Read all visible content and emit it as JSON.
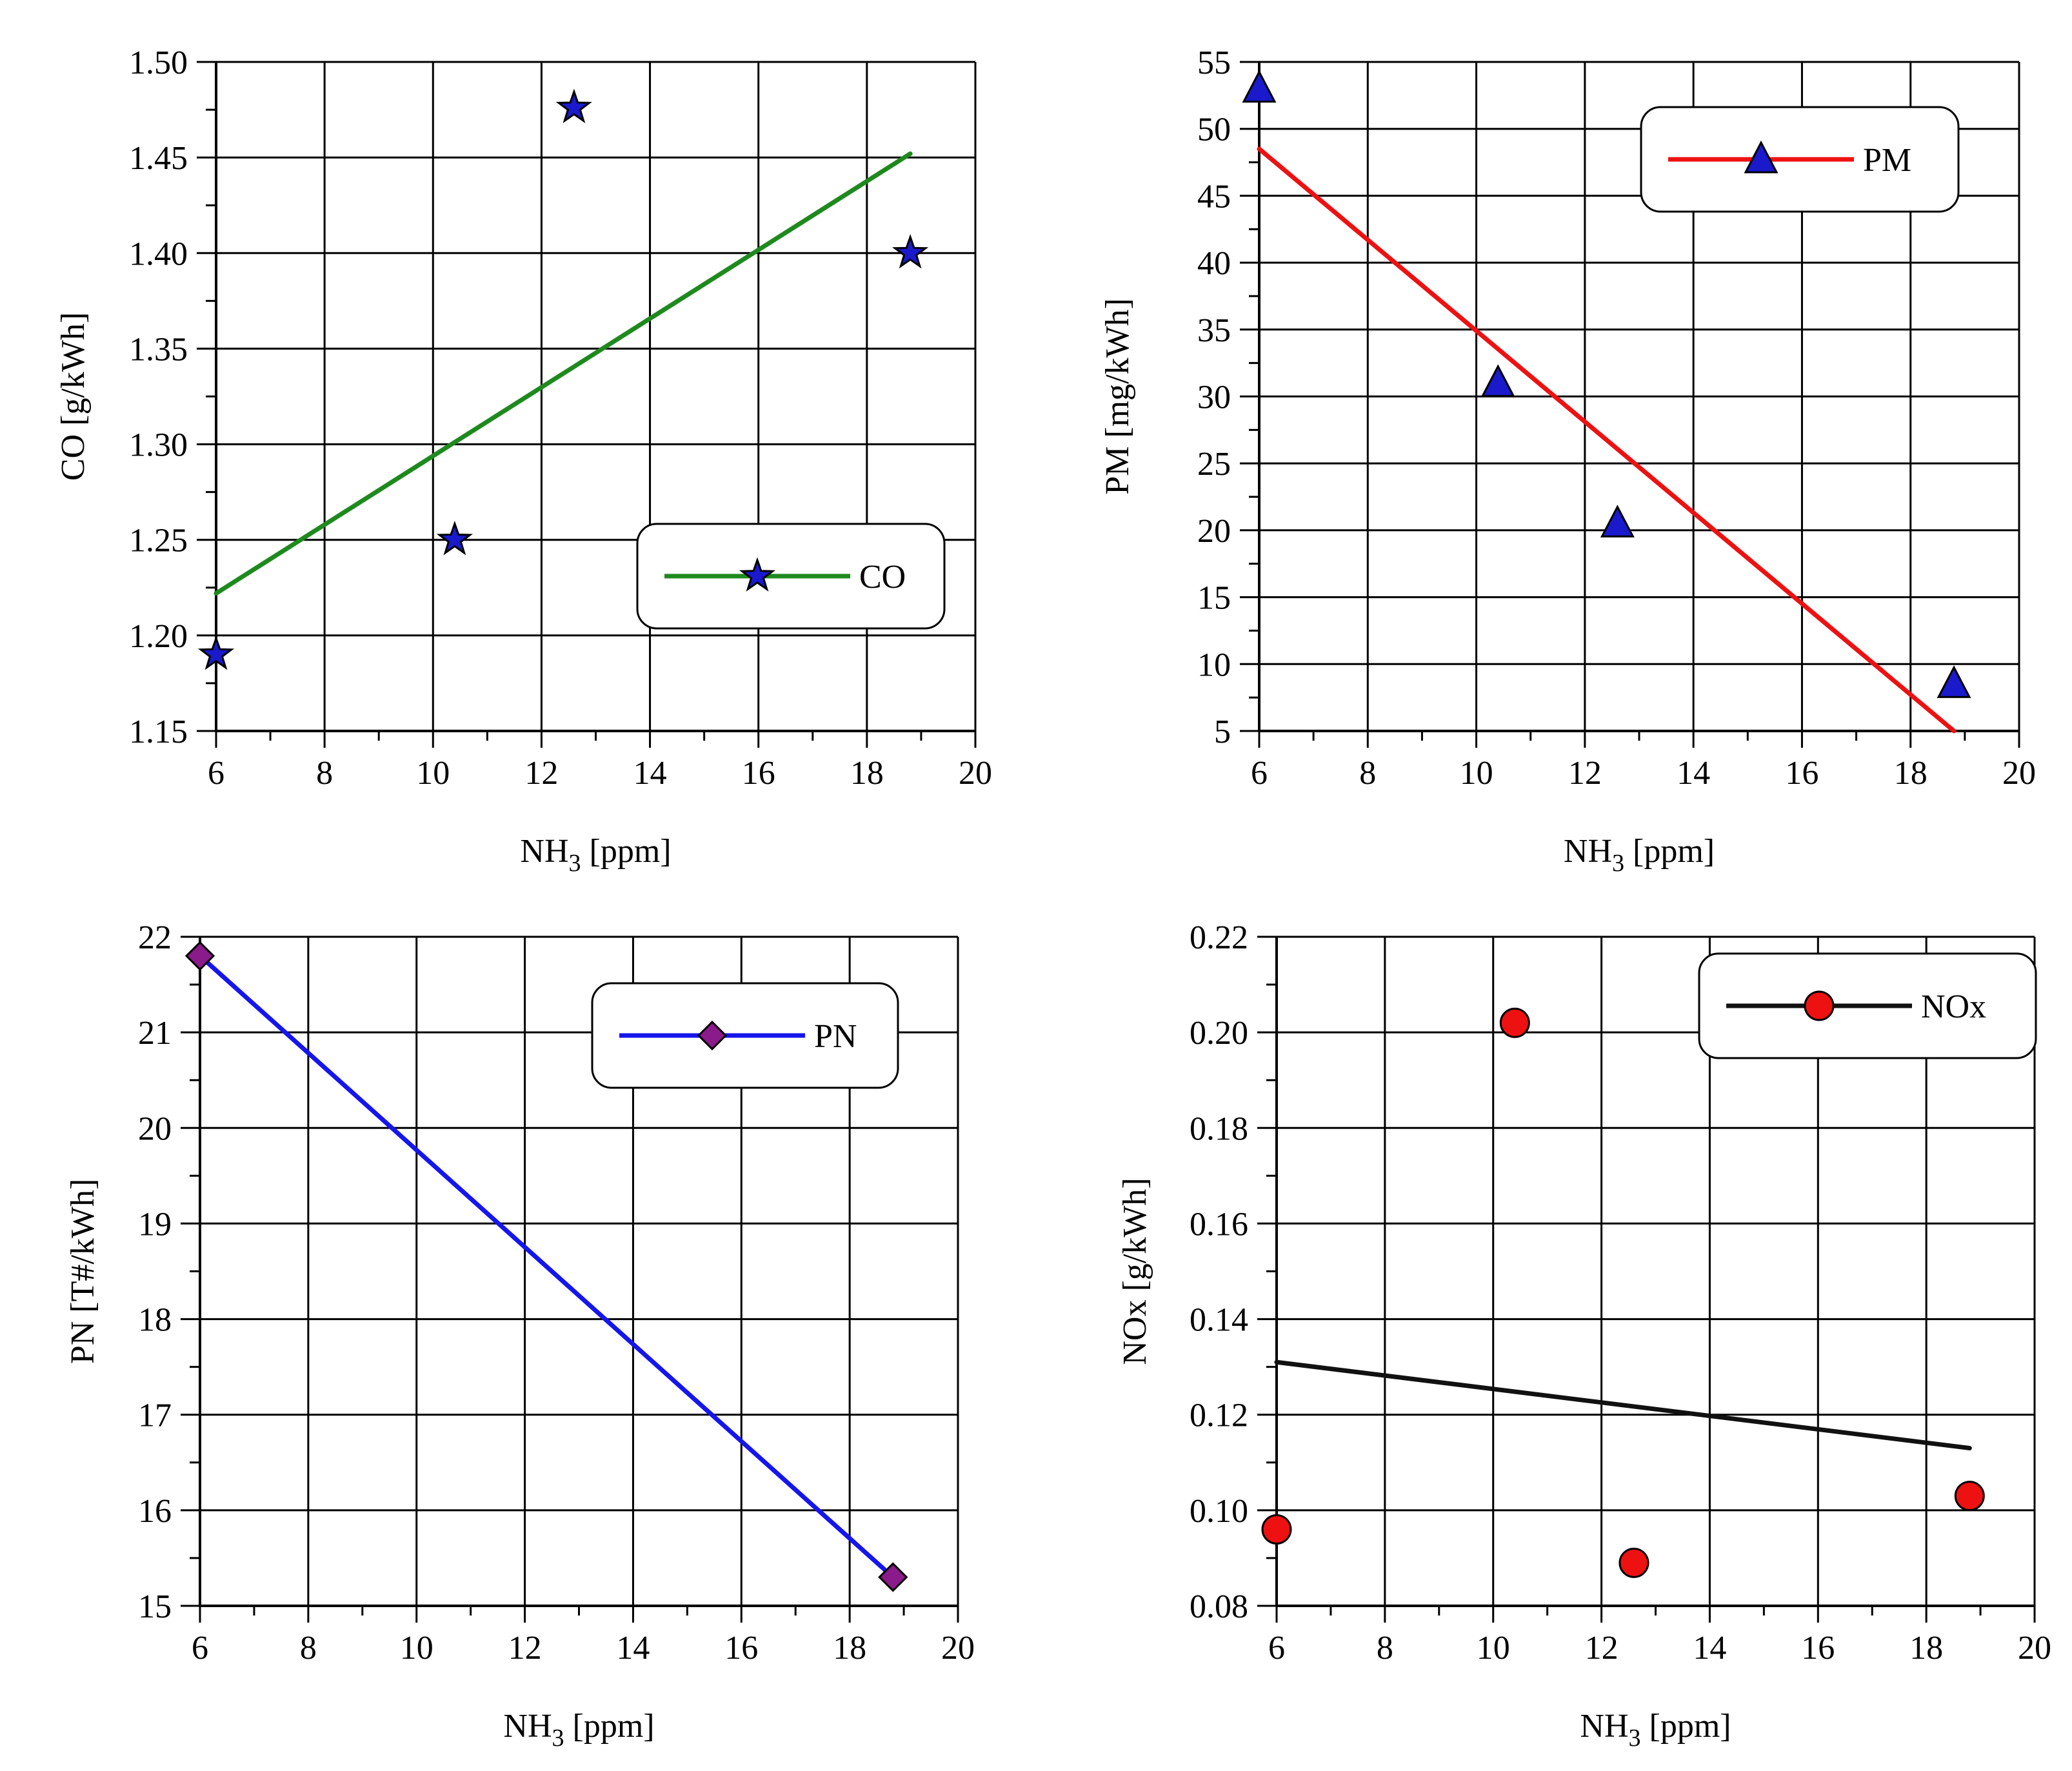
{
  "figure": {
    "x_label_main": "NH",
    "x_label_sub": "3",
    "x_label_unit": " [ppm]"
  },
  "chart_data": [
    {
      "id": "co",
      "type": "scatter",
      "ylabel": "CO [g/kWh]",
      "xlabel": "NH3 [ppm]",
      "xlim": [
        6,
        20
      ],
      "ylim": [
        1.15,
        1.5
      ],
      "xticks": [
        6,
        8,
        10,
        12,
        14,
        16,
        18,
        20
      ],
      "yticks": [
        1.15,
        1.2,
        1.25,
        1.3,
        1.35,
        1.4,
        1.45,
        1.5
      ],
      "ytick_labels": [
        "1.15",
        "1.20",
        "1.25",
        "1.30",
        "1.35",
        "1.40",
        "1.45",
        "1.50"
      ],
      "marker": "star",
      "marker_color": "#1a1acc",
      "line_color": "#1e8a1e",
      "series": [
        {
          "name": "CO",
          "x": [
            6.0,
            10.4,
            12.6,
            18.8
          ],
          "y": [
            1.19,
            1.25,
            1.476,
            1.4
          ]
        }
      ],
      "trendline": {
        "x": [
          6.0,
          18.8
        ],
        "y": [
          1.222,
          1.452
        ]
      },
      "legend": {
        "label": "CO",
        "position": "bottom-right"
      }
    },
    {
      "id": "pm",
      "type": "scatter",
      "ylabel": "PM [mg/kWh]",
      "xlabel": "NH3 [ppm]",
      "xlim": [
        6,
        20
      ],
      "ylim": [
        5,
        55
      ],
      "xticks": [
        6,
        8,
        10,
        12,
        14,
        16,
        18,
        20
      ],
      "yticks": [
        5,
        10,
        15,
        20,
        25,
        30,
        35,
        40,
        45,
        50,
        55
      ],
      "ytick_labels": [
        "5",
        "10",
        "15",
        "20",
        "25",
        "30",
        "35",
        "40",
        "45",
        "50",
        "55"
      ],
      "marker": "triangle",
      "marker_color": "#1a1acc",
      "line_color": "#ee1111",
      "series": [
        {
          "name": "PM",
          "x": [
            6.0,
            10.4,
            12.6,
            18.8
          ],
          "y": [
            53,
            31,
            20.5,
            8.5
          ]
        }
      ],
      "trendline": {
        "x": [
          6.0,
          18.8
        ],
        "y": [
          48.5,
          5.0
        ]
      },
      "legend": {
        "label": "PM",
        "position": "top-right"
      }
    },
    {
      "id": "pn",
      "type": "line",
      "ylabel": "PN [T#/kWh]",
      "xlabel": "NH3 [ppm]",
      "xlim": [
        6,
        20
      ],
      "ylim": [
        15,
        22
      ],
      "xticks": [
        6,
        8,
        10,
        12,
        14,
        16,
        18,
        20
      ],
      "yticks": [
        15,
        16,
        17,
        18,
        19,
        20,
        21,
        22
      ],
      "ytick_labels": [
        "15",
        "16",
        "17",
        "18",
        "19",
        "20",
        "21",
        "22"
      ],
      "marker": "diamond",
      "marker_color": "#8b1a8b",
      "line_color": "#1515ee",
      "series": [
        {
          "name": "PN",
          "x": [
            6.0,
            18.8
          ],
          "y": [
            21.8,
            15.3
          ]
        }
      ],
      "trendline": {
        "x": [
          6.0,
          18.8
        ],
        "y": [
          21.8,
          15.3
        ]
      },
      "legend": {
        "label": "PN",
        "position": "top-right"
      }
    },
    {
      "id": "nox",
      "type": "scatter",
      "ylabel": "NOx [g/kWh]",
      "xlabel": "NH3 [ppm]",
      "xlim": [
        6,
        20
      ],
      "ylim": [
        0.08,
        0.22
      ],
      "xticks": [
        6,
        8,
        10,
        12,
        14,
        16,
        18,
        20
      ],
      "yticks": [
        0.08,
        0.1,
        0.12,
        0.14,
        0.16,
        0.18,
        0.2,
        0.22
      ],
      "ytick_labels": [
        "0.08",
        "0.10",
        "0.12",
        "0.14",
        "0.16",
        "0.18",
        "0.20",
        "0.22"
      ],
      "marker": "circle",
      "marker_color": "#ee1111",
      "line_color": "#111111",
      "series": [
        {
          "name": "NOx",
          "x": [
            6.0,
            10.4,
            12.6,
            18.8
          ],
          "y": [
            0.096,
            0.202,
            0.089,
            0.103
          ]
        }
      ],
      "trendline": {
        "x": [
          6.0,
          18.8
        ],
        "y": [
          0.131,
          0.113
        ]
      },
      "legend": {
        "label": "NOx",
        "position": "top-right"
      }
    }
  ]
}
